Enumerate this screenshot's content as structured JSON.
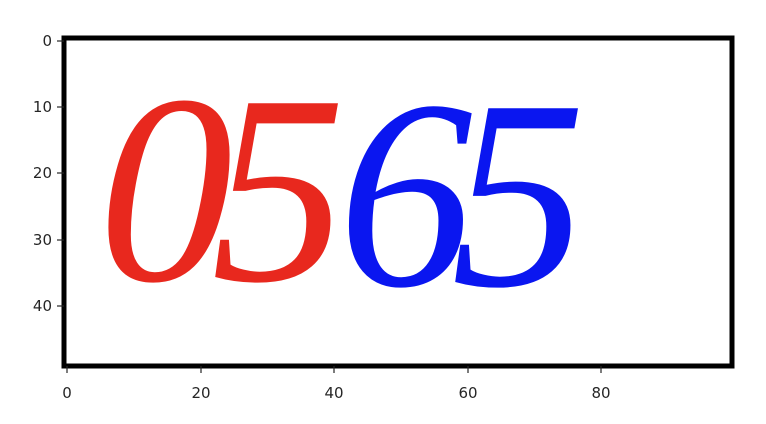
{
  "image": {
    "axes": {
      "x_ticks": [
        "0",
        "20",
        "40",
        "60",
        "80"
      ],
      "y_ticks": [
        "0",
        "10",
        "20",
        "30",
        "40"
      ],
      "xlim": [
        0,
        100
      ],
      "ylim": [
        50,
        0
      ],
      "grid": false,
      "frame_color": "#000000"
    },
    "text": {
      "red_digits": "05",
      "blue_digits": "65"
    },
    "colors": {
      "red_text": "#e8281e",
      "blue_text": "#0a16f0",
      "background": "#ffffff",
      "tick_label": "#262626"
    }
  }
}
